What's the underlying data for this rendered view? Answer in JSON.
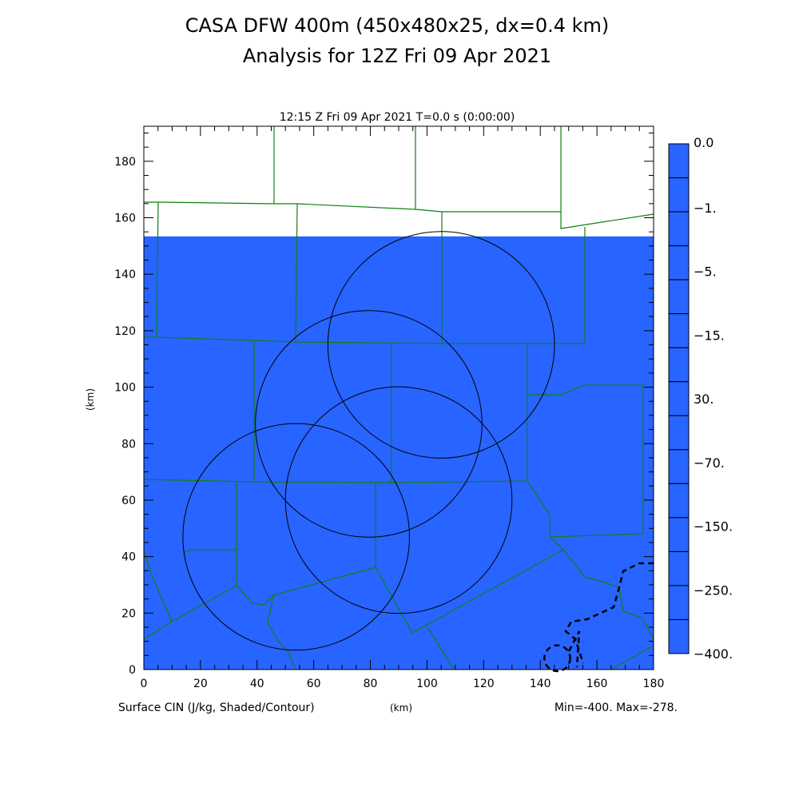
{
  "title": "CASA DFW 400m (450x480x25, dx=0.4 km)",
  "subtitle": "Analysis for 12Z Fri 09 Apr 2021",
  "plot_header": "12:15 Z Fri 09 Apr 2021   T=0.0 s (0:00:00)",
  "footer_left": "Surface CIN (J/kg, Shaded/Contour)",
  "footer_xunit": "(km)",
  "footer_right": "Min=-400. Max=-278.",
  "chart_data": {
    "type": "heatmap",
    "xlabel": "(km)",
    "ylabel": "(km)",
    "xlim": [
      0,
      180
    ],
    "ylim": [
      0,
      192.4
    ],
    "xticks": [
      0,
      20,
      40,
      60,
      80,
      100,
      120,
      140,
      160,
      180
    ],
    "yticks": [
      0,
      20,
      40,
      60,
      80,
      100,
      120,
      140,
      160,
      180
    ],
    "shaded_region_top_km": 153.4,
    "shade_color": "#2864ff",
    "colorbar_labels": [
      "0.0",
      "-1.",
      "-5.",
      "-15.",
      "30.",
      "-70.",
      "-150.",
      "-250.",
      "-400."
    ],
    "colorbar_boxes": 15,
    "radar_rings": [
      {
        "x": 105,
        "y": 115,
        "r": 40
      },
      {
        "x": 79.4,
        "y": 87,
        "r": 40
      },
      {
        "x": 90,
        "y": 60,
        "r": 40
      },
      {
        "x": 53.8,
        "y": 47,
        "r": 40
      }
    ],
    "contour_small_ring": {
      "x": 146,
      "y": 4,
      "r": 4
    }
  }
}
